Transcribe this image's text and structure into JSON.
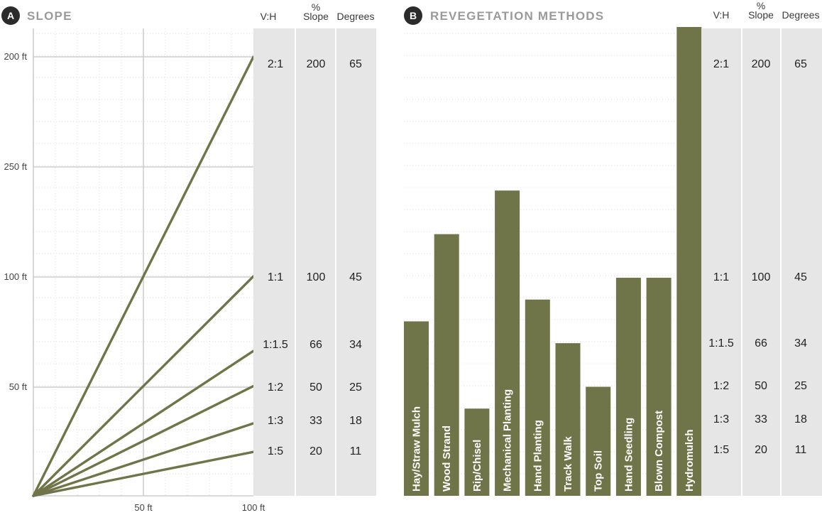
{
  "panels": {
    "a": {
      "badge": "A",
      "title": "SLOPE"
    },
    "b": {
      "badge": "B",
      "title": "REVEGETATION METHODS"
    }
  },
  "table": {
    "headers": [
      "V:H",
      "% Slope",
      "Degrees"
    ],
    "header_top": [
      "",
      "%",
      ""
    ],
    "header_bottom": [
      "V:H",
      "Slope",
      "Degrees"
    ],
    "rows": [
      {
        "vh": "2:1",
        "slope": "200",
        "deg": "65"
      },
      {
        "vh": "1:1",
        "slope": "100",
        "deg": "45"
      },
      {
        "vh": "1:1.5",
        "slope": "66",
        "deg": "34"
      },
      {
        "vh": "1:2",
        "slope": "50",
        "deg": "25"
      },
      {
        "vh": "1:3",
        "slope": "33",
        "deg": "18"
      },
      {
        "vh": "1:5",
        "slope": "20",
        "deg": "11"
      }
    ]
  },
  "colors": {
    "olive": "#6f7548",
    "table_bg": "#e6e6e6",
    "grid_major": "#c4c4c4",
    "grid_minor": "#dcdcdc",
    "badge": "#2b2b2b"
  },
  "chart_data": [
    {
      "type": "line",
      "title": "SLOPE",
      "x_ticks": [
        "50 ft",
        "100 ft"
      ],
      "y_ticks": [
        "200 ft",
        "250 ft",
        "100 ft",
        "50 ft"
      ],
      "x_range": [
        0,
        100
      ],
      "y_range": [
        0,
        200
      ],
      "series": [
        {
          "name": "2:1",
          "x": [
            0,
            100
          ],
          "y": [
            0,
            200
          ]
        },
        {
          "name": "1:1",
          "x": [
            0,
            100
          ],
          "y": [
            0,
            100
          ]
        },
        {
          "name": "1:1.5",
          "x": [
            0,
            100
          ],
          "y": [
            0,
            66
          ]
        },
        {
          "name": "1:2",
          "x": [
            0,
            100
          ],
          "y": [
            0,
            50
          ]
        },
        {
          "name": "1:3",
          "x": [
            0,
            100
          ],
          "y": [
            0,
            33
          ]
        },
        {
          "name": "1:5",
          "x": [
            0,
            100
          ],
          "y": [
            0,
            20
          ]
        }
      ],
      "grid": true
    },
    {
      "type": "bar",
      "title": "REVEGETATION METHODS",
      "categories": [
        "Hay/Straw Mulch",
        "Wood Strand",
        "Rip/Chisel",
        "Mechanical Planting",
        "Hand Planting",
        "Track Walk",
        "Top Soil",
        "Hand Seedling",
        "Blown Compost",
        "Hydromulch"
      ],
      "values": [
        80,
        120,
        40,
        140,
        90,
        70,
        50,
        100,
        100,
        215
      ],
      "y_units": "% Slope",
      "ylim": [
        0,
        215
      ]
    }
  ]
}
